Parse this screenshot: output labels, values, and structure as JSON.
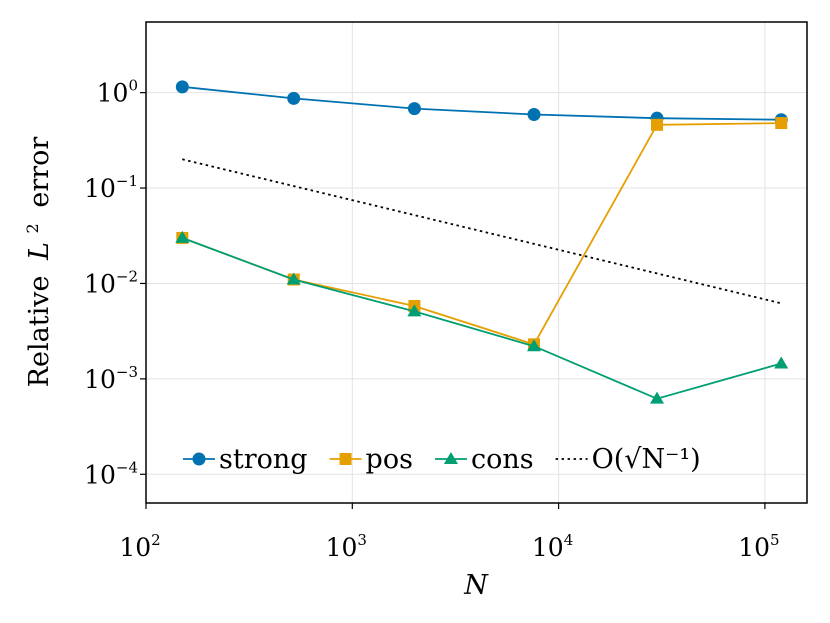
{
  "chart_data": {
    "type": "line",
    "x_scale": "log",
    "y_scale": "log",
    "xlabel": "N",
    "ylabel_prefix": "Relative",
    "ylabel_var": "L",
    "ylabel_sup": "2",
    "ylabel_suffix": "error",
    "xlim": [
      100,
      160000
    ],
    "ylim": [
      5e-05,
      5.5
    ],
    "grid": true,
    "x_ticks": [
      {
        "value": 100,
        "base": "10",
        "exp": "2"
      },
      {
        "value": 1000,
        "base": "10",
        "exp": "3"
      },
      {
        "value": 10000,
        "base": "10",
        "exp": "4"
      },
      {
        "value": 100000,
        "base": "10",
        "exp": "5"
      }
    ],
    "y_ticks": [
      {
        "value": 1,
        "base": "10",
        "exp": "0"
      },
      {
        "value": 0.1,
        "base": "10",
        "exp": "−1"
      },
      {
        "value": 0.01,
        "base": "10",
        "exp": "−2"
      },
      {
        "value": 0.001,
        "base": "10",
        "exp": "−3"
      },
      {
        "value": 0.0001,
        "base": "10",
        "exp": "−4"
      }
    ],
    "legend_position": "bottom",
    "series": [
      {
        "name": "strong",
        "color": "#0072b2",
        "marker": "circle",
        "line": "solid",
        "x": [
          150,
          520,
          2000,
          7600,
          30000,
          120000
        ],
        "y": [
          1.15,
          0.87,
          0.68,
          0.59,
          0.54,
          0.52
        ]
      },
      {
        "name": "pos",
        "color": "#e69f00",
        "marker": "square",
        "line": "solid",
        "x": [
          150,
          520,
          2000,
          7600,
          30000,
          120000
        ],
        "y": [
          0.03,
          0.011,
          0.0058,
          0.0023,
          0.46,
          0.48
        ]
      },
      {
        "name": "cons",
        "color": "#009e73",
        "marker": "triangle",
        "line": "solid",
        "x": [
          150,
          520,
          2000,
          7600,
          30000,
          120000
        ],
        "y": [
          0.03,
          0.011,
          0.0051,
          0.0022,
          0.00062,
          0.00145
        ]
      },
      {
        "name": "O(√N⁻¹)",
        "color": "#000000",
        "marker": "none",
        "line": "dotted",
        "x": [
          150,
          120000
        ],
        "y": [
          0.2,
          0.0062
        ]
      }
    ]
  }
}
